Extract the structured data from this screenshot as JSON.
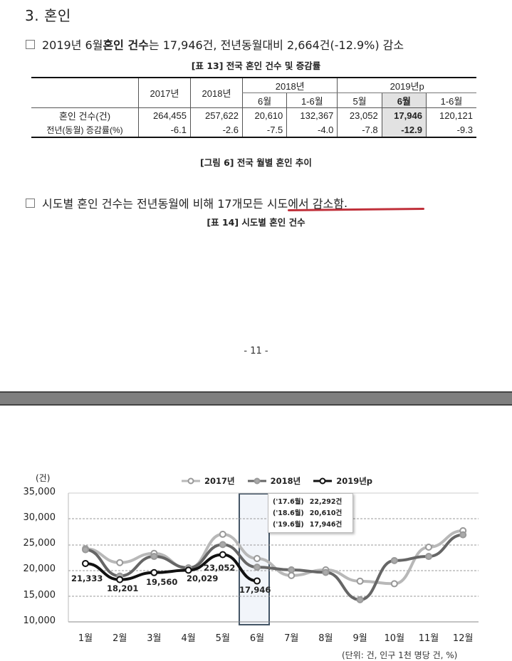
{
  "section": {
    "title": "3. 혼인"
  },
  "summary": {
    "prefix": "2019년 6월 ",
    "bold": "혼인 건수",
    "suffix": "는 17,946건, 전년동월대비 2,664건(-12.9%) 감소"
  },
  "table13": {
    "caption": "[표 13] 전국 혼인 건수 및 증감률",
    "header_top": [
      "",
      "2017년",
      "2018년",
      "2018년",
      "2019년p"
    ],
    "header_sub": [
      "6월",
      "1-6월",
      "5월",
      "6월",
      "1-6월"
    ],
    "rows": [
      {
        "label": "혼인 건수(건)",
        "values": [
          "264,455",
          "257,622",
          "20,610",
          "132,367",
          "23,052",
          "17,946",
          "120,121"
        ]
      },
      {
        "label": "전년(동월) 증감률(%)",
        "values": [
          "-6.1",
          "-2.6",
          "-7.5",
          "-4.0",
          "-7.8",
          "-12.9",
          "-9.3"
        ]
      }
    ]
  },
  "figure6": {
    "caption": "[그림 6] 전국 월별 혼인 추이"
  },
  "regional": {
    "text_plain": "시도별 혼인 건수는 전년동월에 비해 17개 ",
    "text_underlined": "모든 시도에서 감소함",
    "text_end": "."
  },
  "table14": {
    "caption": "[표 14] 시도별 혼인 건수"
  },
  "page": {
    "number": "- 11 -"
  },
  "chart_data": {
    "type": "line",
    "title": "",
    "unit_label": "(건)",
    "xlabel": "",
    "ylabel": "건",
    "ylim": [
      10000,
      35000
    ],
    "yticks": [
      "35,000",
      "30,000",
      "25,000",
      "20,000",
      "15,000",
      "10,000"
    ],
    "grid": true,
    "legend_position": "top",
    "categories": [
      "1월",
      "2월",
      "3월",
      "4월",
      "5월",
      "6월",
      "7월",
      "8월",
      "9월",
      "10월",
      "11월",
      "12월"
    ],
    "series": [
      {
        "name": "2017년",
        "color": "#b8b8b8",
        "values": [
          24200,
          21500,
          23300,
          20400,
          27000,
          22292,
          19000,
          20100,
          17900,
          17400,
          24500,
          27700
        ]
      },
      {
        "name": "2018년",
        "color": "#666666",
        "values": [
          24000,
          18900,
          22700,
          20500,
          25000,
          20610,
          20100,
          19600,
          14300,
          21900,
          22700,
          26900
        ]
      },
      {
        "name": "2019년p",
        "color": "#111111",
        "values": [
          21333,
          18201,
          19560,
          20029,
          23052,
          17946
        ]
      }
    ],
    "data_labels_2019": [
      "21,333",
      "18,201",
      "19,560",
      "20,029",
      "23,052",
      "17,946"
    ],
    "highlight": {
      "category": "6월"
    },
    "tooltip": [
      {
        "label": "('17.6월)",
        "value": "22,292건"
      },
      {
        "label": "('18.6월)",
        "value": "20,610건"
      },
      {
        "label": "('19.6월)",
        "value": "17,946건"
      }
    ],
    "footnote": "(단위: 건, 인구 1천 명당 건, %)"
  }
}
